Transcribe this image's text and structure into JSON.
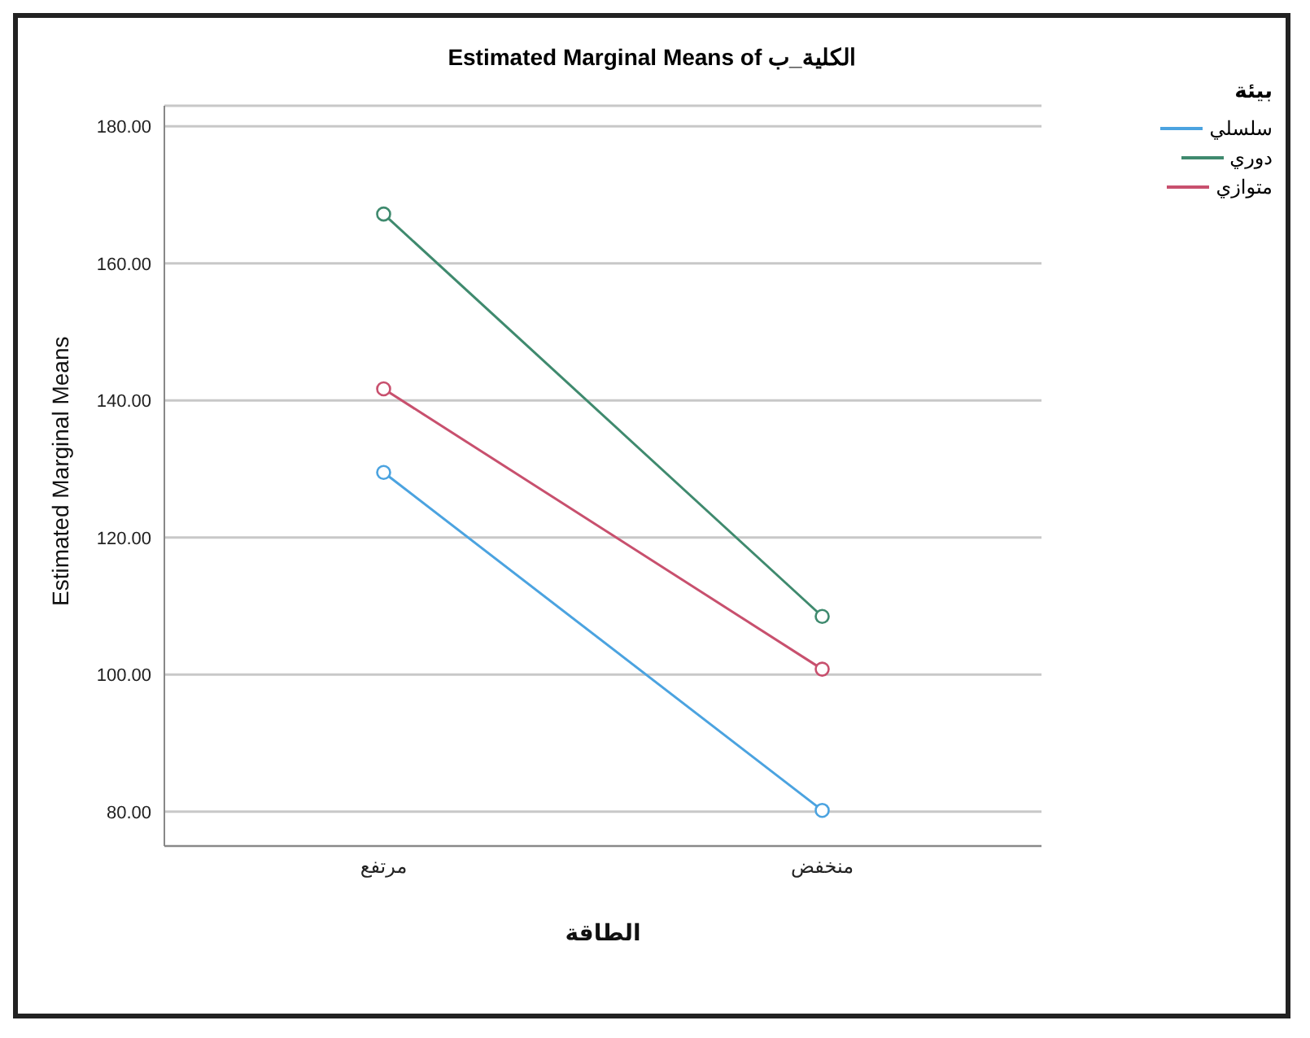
{
  "chart_data": {
    "type": "line",
    "title": "Estimated Marginal Means of الكلية_ب",
    "xlabel": "الطاقة",
    "ylabel": "Estimated Marginal Means",
    "legend_title": "بيئة",
    "categories": [
      "مرتفع",
      "منخفض"
    ],
    "series": [
      {
        "name": "سلسلي",
        "color": "#4ba3e0",
        "values": [
          129.5,
          80.2
        ]
      },
      {
        "name": "دوري",
        "color": "#3f8a6e",
        "values": [
          167.2,
          108.5
        ]
      },
      {
        "name": "متوازي",
        "color": "#c8506e",
        "values": [
          141.7,
          100.8
        ]
      }
    ],
    "ylim": [
      75,
      183
    ],
    "yticks": [
      {
        "value": 80,
        "label": "80.00"
      },
      {
        "value": 100,
        "label": "100.00"
      },
      {
        "value": 120,
        "label": "120.00"
      },
      {
        "value": 140,
        "label": "140.00"
      },
      {
        "value": 160,
        "label": "160.00"
      },
      {
        "value": 180,
        "label": "180.00"
      }
    ],
    "grid": "y",
    "legend": "top right",
    "marker": "circle",
    "line_style": "solid"
  }
}
